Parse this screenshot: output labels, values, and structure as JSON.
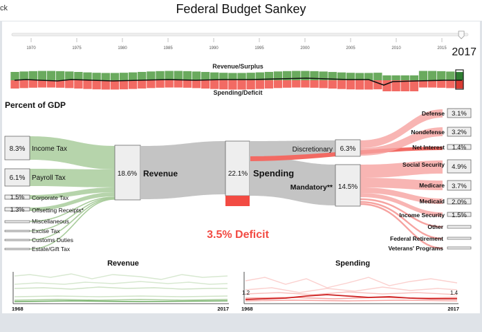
{
  "app": {
    "title": "Federal Budget Sankey",
    "back_label": "ck"
  },
  "timeline": {
    "ticks": [
      "1970",
      "1975",
      "1980",
      "1985",
      "1990",
      "1995",
      "2000",
      "2005",
      "2010",
      "2015"
    ],
    "selected_year": "2017",
    "position": 0.985
  },
  "strip": {
    "revenue_label": "Revenue/Surplus",
    "spending_label": "Spending/Deficit"
  },
  "section_title": "Percent of GDP",
  "sources": [
    {
      "label": "Income Tax",
      "value": "8.3%"
    },
    {
      "label": "Payroll Tax",
      "value": "6.1%"
    },
    {
      "label": "Corporate Tax",
      "value": "1.5%"
    },
    {
      "label": "Offsetting Receipts*",
      "value": "1.3%"
    },
    {
      "label": "Miscellaneous",
      "value": ""
    },
    {
      "label": "Excise Tax",
      "value": ""
    },
    {
      "label": "Customs Duties",
      "value": ""
    },
    {
      "label": "Estate/Gift Tax",
      "value": ""
    }
  ],
  "revenue_node": {
    "label": "Revenue",
    "value": "18.6%"
  },
  "spending_node": {
    "label": "Spending",
    "value": "22.1%"
  },
  "discretionary_node": {
    "label": "Discretionary",
    "value": "6.3%"
  },
  "mandatory_node": {
    "label": "Mandatory**",
    "value": "14.5%"
  },
  "outputs": [
    {
      "label": "Defense",
      "value": "3.1%"
    },
    {
      "label": "Nondefense",
      "value": "3.2%"
    },
    {
      "label": "Net Interest",
      "value": "1.4%"
    },
    {
      "label": "Social Security",
      "value": "4.9%"
    },
    {
      "label": "Medicare",
      "value": "3.7%"
    },
    {
      "label": "Medicaid",
      "value": "2.0%"
    },
    {
      "label": "Income Security",
      "value": "1.5%"
    },
    {
      "label": "Other",
      "value": ""
    },
    {
      "label": "Federal Retirement",
      "value": ""
    },
    {
      "label": "Veterans' Programs",
      "value": ""
    }
  ],
  "deficit_label": "3.5% Deficit",
  "mini_revenue": {
    "title": "Revenue",
    "start": "1968",
    "end": "2017"
  },
  "mini_spending": {
    "title": "Spending",
    "start": "1968",
    "end": "2017",
    "left_value": "1.2",
    "right_value": "1.4"
  },
  "colors": {
    "revenue": "#6aaa5e",
    "spending": "#f26a63",
    "node_gray": "#c8c8c8",
    "deficit": "#f24b43"
  }
}
